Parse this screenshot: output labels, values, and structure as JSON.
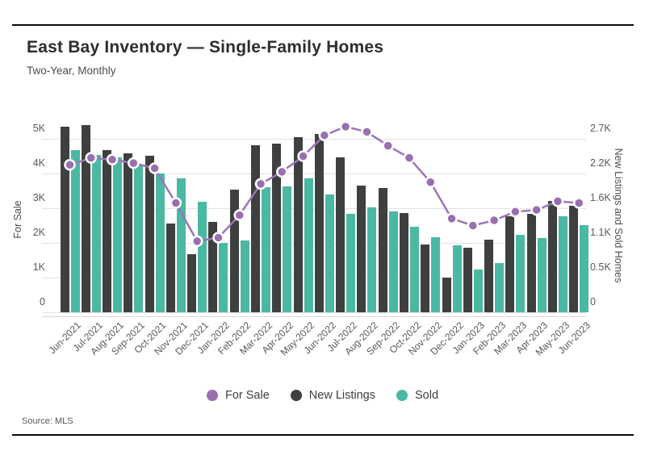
{
  "header": {
    "title": "East Bay Inventory — Single-Family Homes",
    "subtitle": "Two-Year, Monthly"
  },
  "source": "Source: MLS",
  "colors": {
    "for_sale": "#9d74b8",
    "for_sale_dot": "#9a6fb0",
    "new_listings": "#3e4040",
    "sold": "#4bb8a3",
    "gridline": "#e2e2e2",
    "rule": "#0a0a0a"
  },
  "chart_data": {
    "type": "combo-bar-line",
    "title": "East Bay Inventory — Single-Family Homes",
    "subtitle": "Two-Year, Monthly",
    "grid": true,
    "legend_position": "bottom",
    "categories": [
      "Jun-2021",
      "Jul-2021",
      "Aug-2021",
      "Sep-2021",
      "Oct-2021",
      "Nov-2021",
      "Dec-2021",
      "Jan-2022",
      "Feb-2022",
      "Mar-2022",
      "Apr-2022",
      "May-2022",
      "Jun-2022",
      "Jul-2022",
      "Aug-2022",
      "Sep-2022",
      "Oct-2022",
      "Nov-2022",
      "Dec-2022",
      "Jan-2023",
      "Feb-2023",
      "Mar-2023",
      "Apr-2023",
      "May-2023",
      "Jun-2023"
    ],
    "series": [
      {
        "name": "For Sale",
        "type": "line",
        "axis": "left",
        "color": "#9d74b8",
        "dot_color": "#9a6fb0",
        "values": [
          4250,
          4450,
          4400,
          4300,
          4150,
          3150,
          2050,
          2150,
          2800,
          3700,
          4050,
          4500,
          5100,
          5350,
          5200,
          4800,
          4450,
          3750,
          2700,
          2500,
          2650,
          2900,
          2950,
          3200,
          3150
        ]
      },
      {
        "name": "New Listings",
        "type": "bar",
        "axis": "right",
        "color": "#3e4040",
        "values": [
          2890,
          2910,
          2520,
          2480,
          2440,
          1380,
          910,
          1410,
          1910,
          2600,
          2620,
          2720,
          2770,
          2410,
          1970,
          1940,
          1540,
          1050,
          540,
          1000,
          1130,
          1490,
          1530,
          1730,
          1660
        ]
      },
      {
        "name": "Sold",
        "type": "bar",
        "axis": "right",
        "color": "#4bb8a3",
        "values": [
          2530,
          2450,
          2410,
          2300,
          2160,
          2090,
          1720,
          1080,
          1120,
          1950,
          1960,
          2080,
          1830,
          1530,
          1630,
          1570,
          1330,
          1170,
          1040,
          660,
          770,
          1210,
          1150,
          1490,
          1360
        ]
      }
    ],
    "left_axis": {
      "label": "For Sale",
      "ticks": [
        "0",
        "1K",
        "2K",
        "3K",
        "4K",
        "5K"
      ],
      "min": 0,
      "max": 5000,
      "tick_step": 1000
    },
    "right_axis": {
      "label": "New Listings and Sold Homes",
      "ticks": [
        "0",
        "0.5K",
        "1.1K",
        "1.6K",
        "2.2K",
        "2.7K"
      ],
      "min": 0,
      "max": 2700
    }
  }
}
